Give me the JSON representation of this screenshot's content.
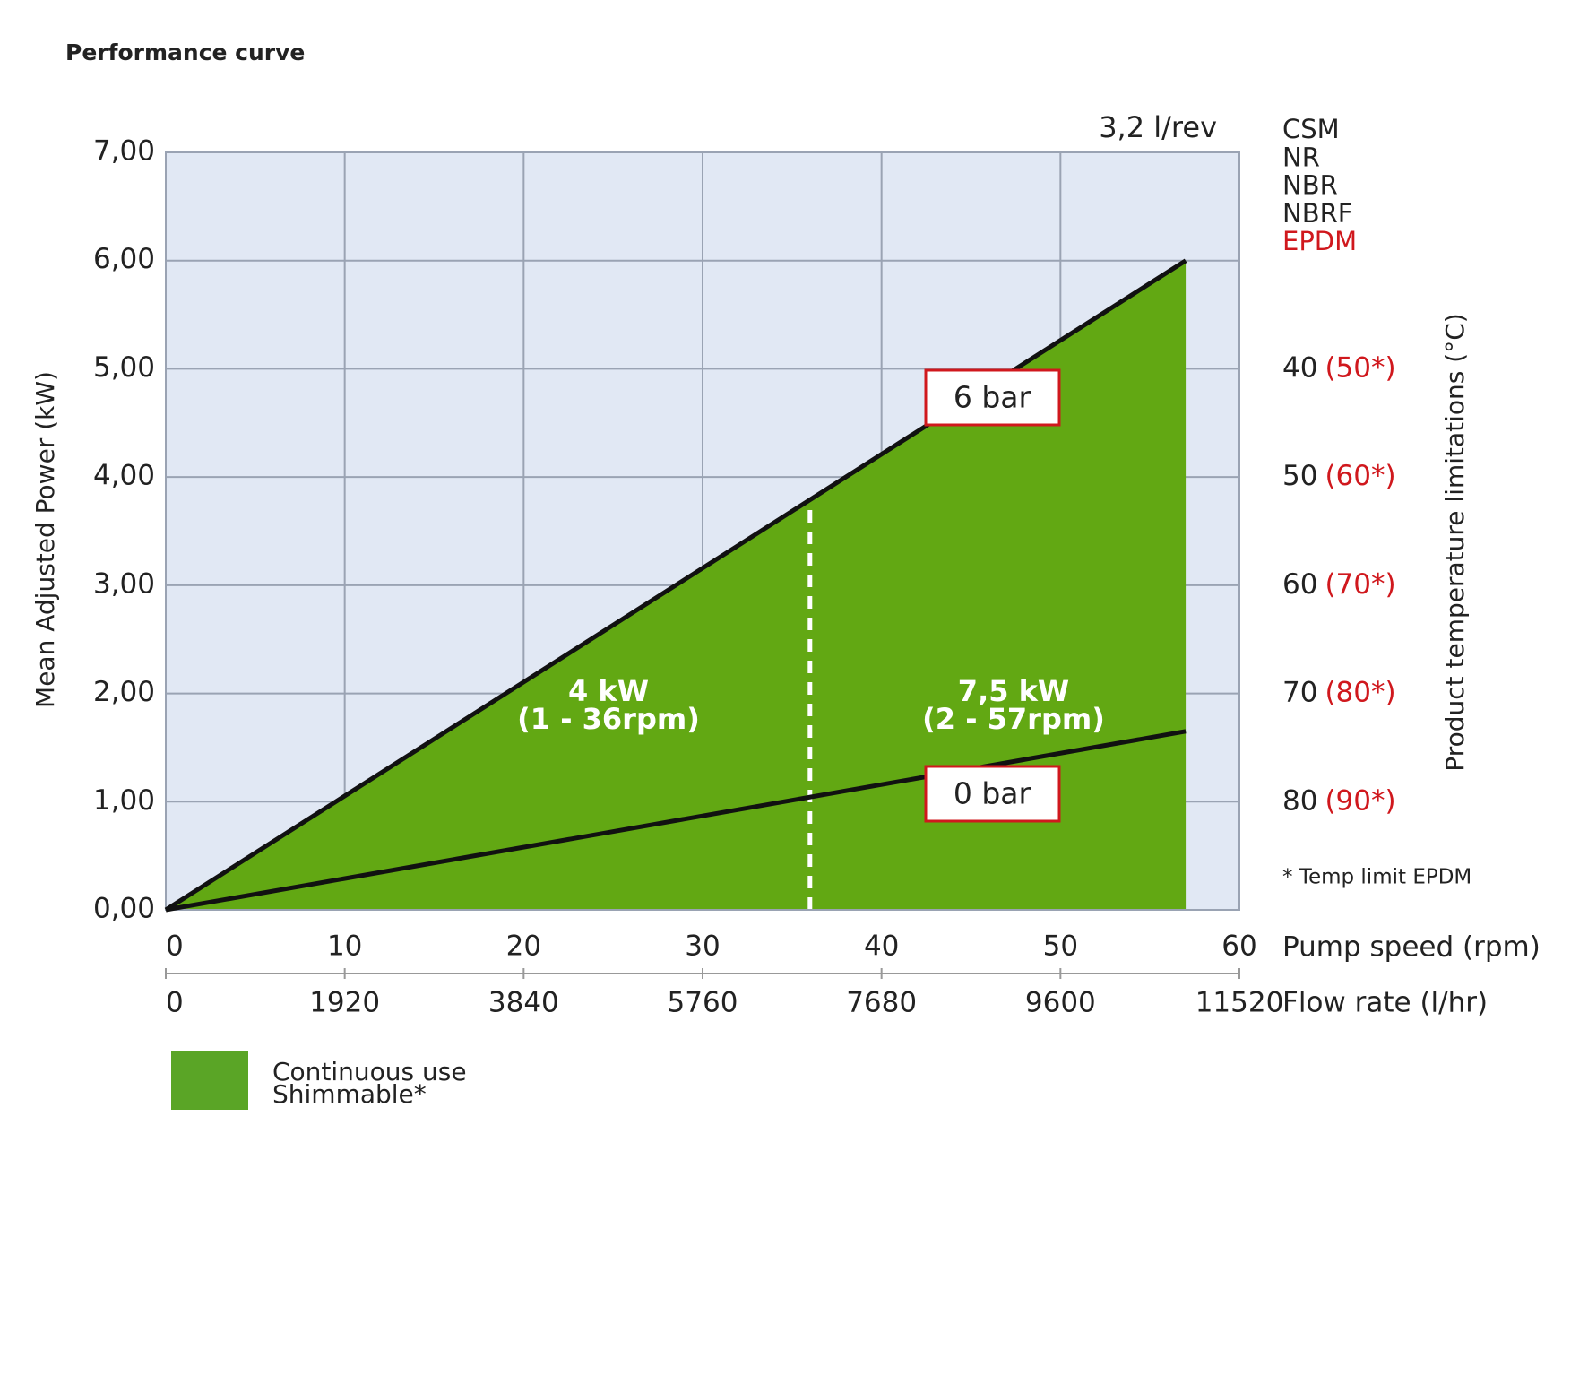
{
  "chart_data": {
    "type": "line",
    "title": "Performance curve",
    "ylabel": "Mean Adjusted Power (kW)",
    "xlabel": "Pump speed (rpm)",
    "x2label": "Flow rate (l/hr)",
    "y2label": "Product temperature limitations (°C)",
    "xlim": [
      0,
      60
    ],
    "xticks": [
      0,
      10,
      20,
      30,
      40,
      50,
      60
    ],
    "x2lim": [
      0,
      11520
    ],
    "x2ticks": [
      0,
      1920,
      3840,
      5760,
      7680,
      9600,
      11520
    ],
    "ylim": [
      0,
      7
    ],
    "yticks": [
      {
        "value": 0,
        "label": "0,00"
      },
      {
        "value": 1,
        "label": "1,00"
      },
      {
        "value": 2,
        "label": "2,00"
      },
      {
        "value": 3,
        "label": "3,00"
      },
      {
        "value": 4,
        "label": "4,00"
      },
      {
        "value": 5,
        "label": "5,00"
      },
      {
        "value": 6,
        "label": "6,00"
      },
      {
        "value": 7,
        "label": "7,00"
      }
    ],
    "y2lim": [
      90,
      20
    ],
    "y2ticks": [
      40,
      50,
      60,
      70,
      80
    ],
    "y2ticks_epdm": [
      "(50*)",
      "(60*)",
      "(70*)",
      "(80*)",
      "(90*)"
    ],
    "grid": true,
    "plot_background": "#e1e8f4",
    "series": [
      {
        "name": "6 bar",
        "color": "#111111",
        "x": [
          0,
          57
        ],
        "values": [
          0,
          6
        ]
      },
      {
        "name": "0 bar",
        "color": "#111111",
        "x": [
          0,
          57
        ],
        "values": [
          0,
          1.65
        ]
      }
    ],
    "area": {
      "color": "#62a813",
      "under_series": 0
    },
    "divider_x": 36,
    "zones": [
      {
        "power": "4 kW",
        "range": "(1 - 36rpm)"
      },
      {
        "power": "7,5 kW",
        "range": "(2 - 57rpm)"
      }
    ],
    "displacement": "3,2 l/rev",
    "materials": [
      "CSM",
      "NR",
      "NBR",
      "NBRF",
      "EPDM"
    ],
    "footnote": "* Temp limit EPDM",
    "legend": {
      "color": "#5aa526",
      "labels": [
        "Continuous use",
        "Shimmable*"
      ]
    }
  }
}
